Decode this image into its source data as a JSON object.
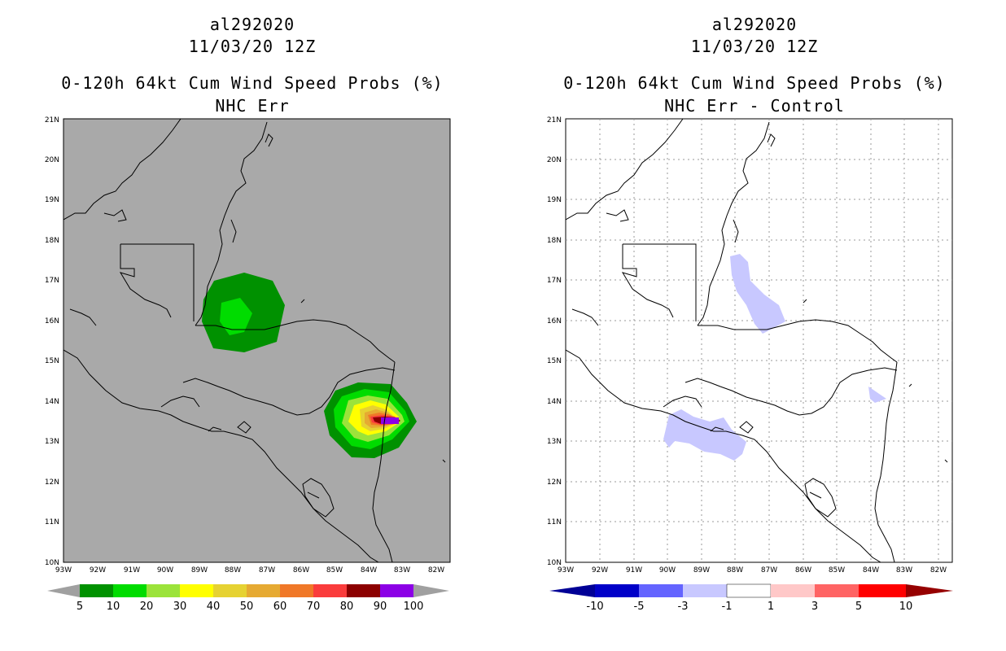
{
  "left_panel": {
    "storm_id": "al292020",
    "datetime": "11/03/20 12Z",
    "product": "0-120h 64kt Cum Wind Speed Probs (%)",
    "subtitle": "NHC Err",
    "background_color": "#a9a9a9"
  },
  "right_panel": {
    "storm_id": "al292020",
    "datetime": "11/03/20 12Z",
    "product": "0-120h 64kt Cum Wind Speed Probs (%)",
    "subtitle": "NHC Err - Control",
    "background_color": "#ffffff"
  },
  "axes": {
    "lat_labels": [
      "21N",
      "20N",
      "19N",
      "18N",
      "17N",
      "16N",
      "15N",
      "14N",
      "13N",
      "12N",
      "11N",
      "10N"
    ],
    "lon_labels": [
      "93W",
      "92W",
      "91W",
      "90W",
      "89W",
      "88W",
      "87W",
      "86W",
      "85W",
      "84W",
      "83W",
      "82W"
    ],
    "lat_range": [
      10,
      21
    ],
    "lon_range": [
      -93,
      -81.8
    ]
  },
  "left_colorbar": {
    "labels": [
      "5",
      "10",
      "20",
      "30",
      "40",
      "50",
      "60",
      "70",
      "80",
      "90",
      "100"
    ],
    "colors": [
      "#009100",
      "#00dc00",
      "#9be33a",
      "#ffff00",
      "#e6d232",
      "#e6aa32",
      "#f07828",
      "#fa3c3c",
      "#8c0000",
      "#8c00e6"
    ],
    "end_color": "#a0a0a0"
  },
  "right_colorbar": {
    "labels": [
      "-10",
      "-5",
      "-3",
      "-1",
      "1",
      "3",
      "5",
      "10"
    ],
    "colors": [
      "#0000c8",
      "#6464ff",
      "#c8c8ff",
      "#ffffff",
      "#ffc8c8",
      "#ff6464",
      "#ff0000"
    ],
    "low_end_color": "#000096",
    "high_end_color": "#960000"
  },
  "probability_areas": [
    {
      "name": "belize-guatemala",
      "level": "5-10%",
      "color": "#009100"
    },
    {
      "name": "belize-guatemala-inner",
      "level": "10-20%",
      "color": "#00dc00"
    },
    {
      "name": "nicaragua-coast",
      "level": "5-100%",
      "peak": "90-100%"
    }
  ]
}
